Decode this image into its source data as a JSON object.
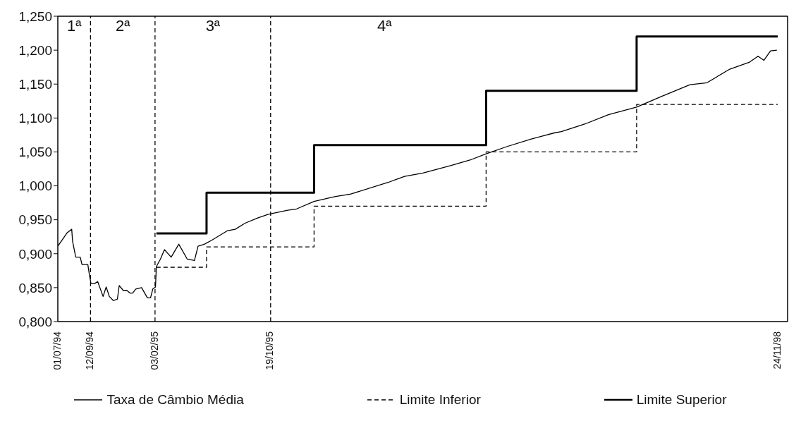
{
  "chart_data": {
    "type": "line",
    "xlim": [
      "1994-07-01",
      "1998-12-16"
    ],
    "ylim": [
      0.8,
      1.25
    ],
    "xticks": [
      {
        "value": "1994-07-01",
        "label": "01/07/94"
      },
      {
        "value": "1994-09-12",
        "label": "12/09/94"
      },
      {
        "value": "1995-02-03",
        "label": "03/02/95"
      },
      {
        "value": "1995-10-19",
        "label": "19/10/95"
      },
      {
        "value": "1998-11-24",
        "label": "24/11/98"
      }
    ],
    "yticks": [
      {
        "value": 0.8,
        "label": "0,800"
      },
      {
        "value": 0.85,
        "label": "0,850"
      },
      {
        "value": 0.9,
        "label": "0,900"
      },
      {
        "value": 0.95,
        "label": "0,950"
      },
      {
        "value": 1.0,
        "label": "1,000"
      },
      {
        "value": 1.05,
        "label": "1,050"
      },
      {
        "value": 1.1,
        "label": "1,100"
      },
      {
        "value": 1.15,
        "label": "1,150"
      },
      {
        "value": 1.2,
        "label": "1,200"
      },
      {
        "value": 1.25,
        "label": "1,250"
      }
    ],
    "grid": false,
    "legend": "bottom",
    "marker": "none",
    "ref_lines": [
      {
        "axis": "x",
        "value": "1994-09-12",
        "color": "#000000",
        "line_style": "dashed"
      },
      {
        "axis": "x",
        "value": "1995-02-03",
        "color": "#000000",
        "line_style": "dashed"
      },
      {
        "axis": "x",
        "value": "1995-10-19",
        "color": "#000000",
        "line_style": "dashed"
      }
    ],
    "annotations": [
      "1ª",
      "2ª",
      "3ª",
      "4ª"
    ],
    "series": [
      {
        "name": "Taxa de Câmbio Média",
        "type": "line",
        "color": "#000000",
        "line_style": "solid",
        "x": [
          "1994-07-01",
          "1994-07-22",
          "1994-08-01",
          "1994-08-03",
          "1994-08-10",
          "1994-08-20",
          "1994-08-24",
          "1994-09-06",
          "1994-09-10",
          "1994-09-13",
          "1994-09-21",
          "1994-09-28",
          "1994-10-10",
          "1994-10-17",
          "1994-10-24",
          "1994-11-02",
          "1994-11-11",
          "1994-11-15",
          "1994-11-24",
          "1994-12-02",
          "1994-12-09",
          "1994-12-15",
          "1994-12-22",
          "1995-01-04",
          "1995-01-17",
          "1995-01-24",
          "1995-01-29",
          "1995-02-04",
          "1995-02-06",
          "1995-02-15",
          "1995-02-24",
          "1995-03-11",
          "1995-03-28",
          "1995-04-16",
          "1995-05-02",
          "1995-05-10",
          "1995-05-24",
          "1995-06-10",
          "1995-07-15",
          "1995-08-01",
          "1995-08-23",
          "1995-09-21",
          "1995-10-14",
          "1995-11-26",
          "1995-12-16",
          "1996-01-24",
          "1996-03-10",
          "1996-04-15",
          "1996-07-07",
          "1996-08-13",
          "1996-09-23",
          "1996-11-25",
          "1997-01-06",
          "1997-02-10",
          "1997-03-30",
          "1997-05-23",
          "1997-07-13",
          "1997-07-29",
          "1997-09-19",
          "1997-11-11",
          "1998-01-13",
          "1998-03-10",
          "1998-05-12",
          "1998-06-19",
          "1998-08-09",
          "1998-09-21",
          "1998-10-11",
          "1998-10-24",
          "1998-11-08",
          "1998-11-22"
        ],
        "values": [
          0.911,
          0.931,
          0.936,
          0.918,
          0.895,
          0.895,
          0.884,
          0.884,
          0.867,
          0.856,
          0.856,
          0.859,
          0.837,
          0.851,
          0.837,
          0.831,
          0.833,
          0.853,
          0.846,
          0.846,
          0.842,
          0.842,
          0.848,
          0.85,
          0.835,
          0.835,
          0.848,
          0.851,
          0.881,
          0.892,
          0.906,
          0.895,
          0.914,
          0.892,
          0.89,
          0.911,
          0.914,
          0.92,
          0.934,
          0.936,
          0.945,
          0.953,
          0.958,
          0.964,
          0.966,
          0.977,
          0.984,
          0.988,
          1.005,
          1.014,
          1.019,
          1.03,
          1.038,
          1.047,
          1.058,
          1.069,
          1.078,
          1.08,
          1.091,
          1.105,
          1.116,
          1.132,
          1.149,
          1.152,
          1.172,
          1.182,
          1.191,
          1.185,
          1.199,
          1.2
        ]
      },
      {
        "name": "Limite Inferior",
        "type": "step",
        "color": "#000000",
        "line_style": "dashed",
        "x": [
          "1995-02-06",
          "1995-05-29",
          "1996-01-24",
          "1997-02-11",
          "1998-01-13",
          "1998-11-24"
        ],
        "values": [
          0.88,
          0.91,
          0.97,
          1.05,
          1.12,
          1.12
        ]
      },
      {
        "name": "Limite Superior",
        "type": "step",
        "color": "#000000",
        "line_style": "solid",
        "x": [
          "1995-02-06",
          "1995-05-29",
          "1996-01-24",
          "1997-02-11",
          "1998-01-13",
          "1998-11-24"
        ],
        "values": [
          0.93,
          0.99,
          1.06,
          1.14,
          1.22,
          1.22
        ]
      }
    ]
  }
}
